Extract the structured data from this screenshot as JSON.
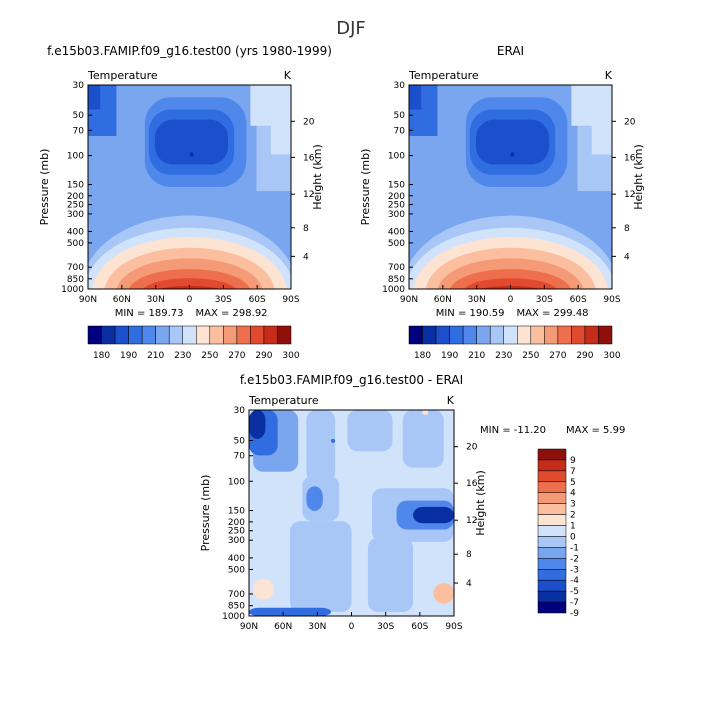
{
  "suptitle": "DJF",
  "palette": [
    "#00007f",
    "#0a2fa3",
    "#1b4fcc",
    "#2f6de0",
    "#4f88ea",
    "#7aa6f0",
    "#a8c6f6",
    "#d1e3fb",
    "#fde3d2",
    "#fbbfa0",
    "#f59a76",
    "#ee6f4d",
    "#e24a2f",
    "#c52d1a",
    "#8f0f0a"
  ],
  "anomaly_palette": [
    "#00007f",
    "#0a2fa3",
    "#1b4fcc",
    "#2f6de0",
    "#4f88ea",
    "#7aa6f0",
    "#a8c6f6",
    "#d1e3fb",
    "#fde3d2",
    "#fbbfa0",
    "#f59a76",
    "#ee6f4d",
    "#e24a2f",
    "#c52d1a",
    "#8f0f0a"
  ],
  "chart_data": [
    {
      "type": "heatmap",
      "title": "f.e15b03.FAMIP.f09_g16.test00 (yrs 1980-1999)",
      "left_label": "Temperature",
      "right_label": "K",
      "ylabel": "Pressure (mb)",
      "ylabel_right": "Height (km)",
      "pressure_ticks": [
        "30",
        "50",
        "70",
        "100",
        "150",
        "200",
        "250",
        "300",
        "400",
        "500",
        "700",
        "850",
        "1000"
      ],
      "height_ticks": [
        "4",
        "8",
        "12",
        "16",
        "20"
      ],
      "lat_ticks": [
        "90N",
        "60N",
        "30N",
        "0",
        "30S",
        "60S",
        "90S"
      ],
      "min_label": "MIN = 189.73",
      "max_label": "MAX = 298.92",
      "colorbar_labels": [
        "180",
        "190",
        "210",
        "230",
        "250",
        "270",
        "290",
        "300"
      ]
    },
    {
      "type": "heatmap",
      "title": "ERAI",
      "left_label": "Temperature",
      "right_label": "K",
      "ylabel": "Pressure (mb)",
      "ylabel_right": "Height (km)",
      "pressure_ticks": [
        "30",
        "50",
        "70",
        "100",
        "150",
        "200",
        "250",
        "300",
        "400",
        "500",
        "700",
        "850",
        "1000"
      ],
      "height_ticks": [
        "4",
        "8",
        "12",
        "16",
        "20"
      ],
      "lat_ticks": [
        "90N",
        "60N",
        "30N",
        "0",
        "30S",
        "60S",
        "90S"
      ],
      "min_label": "MIN = 190.59",
      "max_label": "MAX = 299.48",
      "colorbar_labels": [
        "180",
        "190",
        "210",
        "230",
        "250",
        "270",
        "290",
        "300"
      ]
    },
    {
      "type": "heatmap",
      "title": "f.e15b03.FAMIP.f09_g16.test00 - ERAI",
      "left_label": "Temperature",
      "right_label": "K",
      "ylabel": "Pressure (mb)",
      "ylabel_right": "Height (km)",
      "pressure_ticks": [
        "30",
        "50",
        "70",
        "100",
        "150",
        "200",
        "250",
        "300",
        "400",
        "500",
        "700",
        "850",
        "1000"
      ],
      "height_ticks": [
        "4",
        "8",
        "12",
        "16",
        "20"
      ],
      "lat_ticks": [
        "90N",
        "60N",
        "30N",
        "0",
        "30S",
        "60S",
        "90S"
      ],
      "min_label": "MIN = -11.20",
      "max_label": "MAX =   5.99",
      "colorbar_labels": [
        "9",
        "7",
        "5",
        "4",
        "3",
        "2",
        "1",
        "0",
        "-1",
        "-2",
        "-3",
        "-4",
        "-5",
        "-7",
        "-9"
      ]
    }
  ]
}
